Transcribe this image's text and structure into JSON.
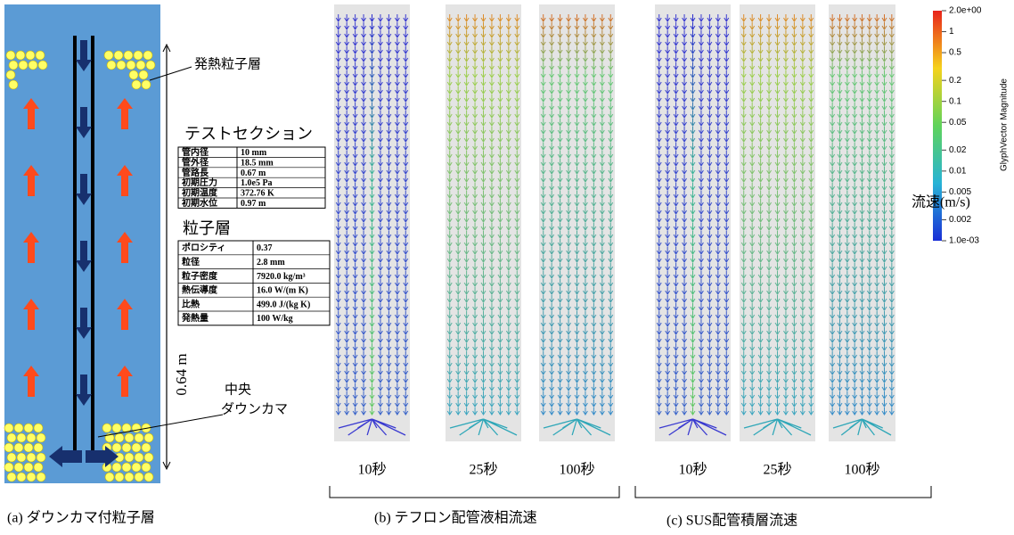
{
  "panel_a": {
    "caption": "(a) ダウンカマ付粒子層",
    "heat_layer_label": "発熱粒子層",
    "downcomer_label_1": "中央",
    "downcomer_label_2": "ダウンカマ",
    "height_label": "0.64 m"
  },
  "test_section": {
    "title": "テストセクション",
    "rows": [
      [
        "管内径",
        "10 mm"
      ],
      [
        "管外径",
        "18.5 mm"
      ],
      [
        "管路長",
        "0.67 m"
      ],
      [
        "初期圧力",
        "1.0e5 Pa"
      ],
      [
        "初期温度",
        "372.76 K"
      ],
      [
        "初期水位",
        "0.97 m"
      ]
    ]
  },
  "particle_layer": {
    "title": "粒子層",
    "rows": [
      [
        "ポロシティ",
        "0.37"
      ],
      [
        "粒径",
        "2.8 mm"
      ],
      [
        "粒子密度",
        "7920.0 kg/m³"
      ],
      [
        "熱伝導度",
        "16.0 W/(m K)"
      ],
      [
        "比熱",
        "499.0 J/(kg K)"
      ],
      [
        "発熱量",
        "100 W/kg"
      ]
    ]
  },
  "panel_b": {
    "caption": "(b) テフロン配管液相流速",
    "times": [
      "10秒",
      "25秒",
      "100秒"
    ]
  },
  "panel_c": {
    "caption": "(c) SUS配管積層流速",
    "times": [
      "10秒",
      "25秒",
      "100秒"
    ]
  },
  "colorbar": {
    "title": "GlyphVector Magnitude",
    "ticks": [
      "2.0e+00",
      "1",
      "0.5",
      "0.2",
      "0.1",
      "0.05",
      "0.02",
      "0.01",
      "0.005",
      "0.002",
      "1.0e-03"
    ],
    "unit_label": "流速(m/s)"
  }
}
